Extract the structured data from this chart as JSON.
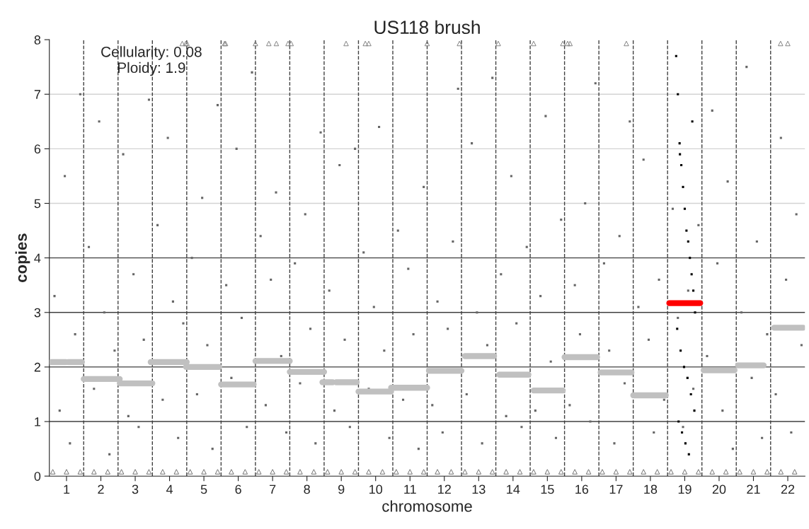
{
  "chart_data": {
    "type": "scatter",
    "title": "US118 brush",
    "xlabel": "chromosome",
    "ylabel": "copies",
    "annotations": [
      "Cellularity: 0.08\nPloidy: 1.9"
    ],
    "xlim": [
      0.5,
      22.5
    ],
    "xticks": [
      1,
      2,
      3,
      4,
      5,
      6,
      7,
      8,
      9,
      10,
      11,
      12,
      13,
      14,
      15,
      16,
      17,
      18,
      19,
      20,
      21,
      22
    ],
    "ylim": [
      0,
      8
    ],
    "yticks": [
      0,
      1,
      2,
      3,
      4,
      5,
      6,
      7,
      8
    ],
    "marker": "square",
    "ref_lines": [
      {
        "axis": "y",
        "value": 1,
        "color": "#404040"
      },
      {
        "axis": "y",
        "value": 2,
        "color": "#404040"
      },
      {
        "axis": "y",
        "value": 3,
        "color": "#404040"
      },
      {
        "axis": "y",
        "value": 4,
        "color": "#404040"
      },
      {
        "axis": "y",
        "value": 5,
        "color": "#d3d3d3"
      },
      {
        "axis": "y",
        "value": 6,
        "color": "#d3d3d3"
      },
      {
        "axis": "y",
        "value": 7,
        "color": "#d3d3d3"
      },
      {
        "axis": "x",
        "value": 1.5,
        "color": "#404040",
        "line_style": "dashed"
      },
      {
        "axis": "x",
        "value": 2.5,
        "color": "#404040",
        "line_style": "dashed"
      },
      {
        "axis": "x",
        "value": 3.5,
        "color": "#404040",
        "line_style": "dashed"
      },
      {
        "axis": "x",
        "value": 4.5,
        "color": "#404040",
        "line_style": "dashed"
      },
      {
        "axis": "x",
        "value": 5.5,
        "color": "#404040",
        "line_style": "dashed"
      },
      {
        "axis": "x",
        "value": 6.5,
        "color": "#404040",
        "line_style": "dashed"
      },
      {
        "axis": "x",
        "value": 7.5,
        "color": "#404040",
        "line_style": "dashed"
      },
      {
        "axis": "x",
        "value": 8.5,
        "color": "#404040",
        "line_style": "dashed"
      },
      {
        "axis": "x",
        "value": 9.5,
        "color": "#404040",
        "line_style": "dashed"
      },
      {
        "axis": "x",
        "value": 10.5,
        "color": "#404040",
        "line_style": "dashed"
      },
      {
        "axis": "x",
        "value": 11.5,
        "color": "#404040",
        "line_style": "dashed"
      },
      {
        "axis": "x",
        "value": 12.5,
        "color": "#404040",
        "line_style": "dashed"
      },
      {
        "axis": "x",
        "value": 13.5,
        "color": "#404040",
        "line_style": "dashed"
      },
      {
        "axis": "x",
        "value": 14.5,
        "color": "#404040",
        "line_style": "dashed"
      },
      {
        "axis": "x",
        "value": 15.5,
        "color": "#404040",
        "line_style": "dashed"
      },
      {
        "axis": "x",
        "value": 16.5,
        "color": "#404040",
        "line_style": "dashed"
      },
      {
        "axis": "x",
        "value": 17.5,
        "color": "#404040",
        "line_style": "dashed"
      },
      {
        "axis": "x",
        "value": 18.5,
        "color": "#404040",
        "line_style": "dashed"
      },
      {
        "axis": "x",
        "value": 19.5,
        "color": "#404040",
        "line_style": "dashed"
      },
      {
        "axis": "x",
        "value": 20.5,
        "color": "#404040",
        "line_style": "dashed"
      },
      {
        "axis": "x",
        "value": 21.5,
        "color": "#404040",
        "line_style": "dashed"
      }
    ],
    "series": [
      {
        "color": "#666666",
        "x": [
          0.65,
          0.8,
          0.95,
          1.1,
          1.25,
          1.4,
          1.65,
          1.8,
          1.95,
          2.1,
          2.25,
          2.4,
          2.65,
          2.8,
          2.95,
          3.1,
          3.25,
          3.4,
          3.65,
          3.8,
          3.95,
          4.1,
          4.25,
          4.4,
          4.65,
          4.8,
          4.95,
          5.1,
          5.25,
          5.4,
          5.65,
          5.8,
          5.95,
          6.1,
          6.25,
          6.4,
          6.65,
          6.8,
          6.95,
          7.1,
          7.25,
          7.4,
          7.65,
          7.8,
          7.95,
          8.1,
          8.25,
          8.4,
          8.65,
          8.8,
          8.95,
          9.1,
          9.25,
          9.4,
          9.65,
          9.8,
          9.95,
          10.1,
          10.25,
          10.4,
          10.65,
          10.8,
          10.95,
          11.1,
          11.25,
          11.4,
          11.65,
          11.8,
          11.95,
          12.1,
          12.25,
          12.4,
          12.65,
          12.8,
          12.95,
          13.1,
          13.25,
          13.4,
          13.65,
          13.8,
          13.95,
          14.1,
          14.25,
          14.4,
          14.65,
          14.8,
          14.95,
          15.1,
          15.25,
          15.4,
          15.65,
          15.8,
          15.95,
          16.1,
          16.25,
          16.4,
          16.65,
          16.8,
          16.95,
          17.1,
          17.25,
          17.4,
          17.65,
          17.8,
          17.95,
          18.1,
          18.25,
          18.4,
          18.65,
          18.8,
          18.95,
          19.1,
          19.25,
          19.4,
          19.65,
          19.8,
          19.95,
          20.1,
          20.25,
          20.4,
          20.65,
          20.8,
          20.95,
          21.1,
          21.25,
          21.4,
          21.65,
          21.8,
          21.95,
          22.1,
          22.25,
          22.4
        ],
        "values": [
          3.3,
          1.2,
          5.5,
          0.6,
          2.6,
          7.0,
          4.2,
          1.6,
          6.5,
          3.0,
          0.4,
          2.3,
          5.9,
          1.1,
          3.7,
          0.9,
          2.5,
          6.9,
          4.6,
          1.4,
          6.2,
          3.2,
          0.7,
          2.8,
          4.0,
          1.5,
          5.1,
          2.4,
          0.5,
          6.8,
          3.5,
          1.8,
          6.0,
          2.9,
          0.9,
          7.4,
          4.4,
          1.3,
          3.6,
          5.2,
          2.2,
          0.8,
          3.9,
          1.7,
          4.8,
          2.7,
          0.6,
          6.3,
          3.4,
          1.2,
          5.7,
          2.5,
          0.9,
          6.0,
          4.1,
          1.6,
          3.1,
          6.4,
          2.3,
          0.7,
          4.5,
          1.4,
          3.8,
          2.6,
          0.5,
          5.3,
          1.3,
          3.2,
          0.8,
          2.7,
          4.3,
          7.1,
          1.5,
          6.1,
          3.0,
          0.6,
          2.4,
          7.3,
          3.7,
          1.1,
          5.5,
          2.8,
          0.9,
          4.2,
          1.2,
          3.3,
          6.6,
          2.1,
          0.7,
          4.7,
          1.3,
          3.5,
          2.6,
          5.0,
          1.0,
          7.2,
          3.9,
          2.3,
          0.6,
          4.4,
          1.7,
          6.5,
          3.1,
          5.8,
          2.5,
          0.8,
          3.6,
          1.4,
          4.9,
          2.9,
          0.9,
          3.4,
          1.6,
          4.6,
          2.2,
          6.7,
          3.9,
          1.2,
          5.4,
          0.5,
          3.0,
          7.5,
          1.8,
          4.3,
          0.7,
          2.6,
          1.5,
          6.2,
          3.6,
          0.8,
          4.8,
          2.4
        ]
      },
      {
        "color": "#000000",
        "x": [
          18.75,
          18.8,
          18.85,
          18.9,
          18.95,
          19.0,
          19.05,
          19.1,
          19.15,
          19.2,
          19.25,
          19.3,
          18.78,
          18.88,
          18.98,
          19.08,
          19.18,
          19.28,
          18.82,
          18.92,
          19.02,
          19.12,
          19.22,
          18.86
        ],
        "values": [
          7.7,
          7.0,
          6.1,
          5.7,
          5.3,
          4.9,
          4.5,
          4.3,
          4.0,
          3.7,
          3.4,
          3.0,
          2.7,
          2.3,
          2.0,
          1.8,
          1.5,
          1.2,
          1.0,
          0.8,
          0.6,
          0.4,
          6.5,
          5.9
        ]
      },
      {
        "color": "#808080",
        "marker": "triangle",
        "x": [
          4.37,
          4.47,
          4.51,
          5.6,
          5.63,
          6.5,
          6.89,
          7.11,
          7.45,
          7.54,
          9.14,
          9.7,
          9.8,
          11.5,
          12.44,
          13.57,
          14.6,
          15.45,
          15.59,
          15.66,
          17.3,
          21.79,
          22.0
        ],
        "values": [
          7.93,
          7.93,
          7.93,
          7.93,
          7.93,
          7.93,
          7.93,
          7.93,
          7.93,
          7.93,
          7.93,
          7.93,
          7.93,
          7.93,
          7.93,
          7.93,
          7.93,
          7.93,
          7.93,
          7.93,
          7.93,
          7.93,
          7.93
        ]
      },
      {
        "color": "#6e6e6e",
        "marker": "triangle",
        "x": [
          0.6,
          1.0,
          1.4,
          1.8,
          2.2,
          2.6,
          3.0,
          3.4,
          3.8,
          4.2,
          4.6,
          5.0,
          5.4,
          5.8,
          6.2,
          6.6,
          7.0,
          7.4,
          7.8,
          8.2,
          8.6,
          9.0,
          9.4,
          9.8,
          10.2,
          10.6,
          11.0,
          11.4,
          11.8,
          12.2,
          12.6,
          13.0,
          13.4,
          13.8,
          14.2,
          14.6,
          15.0,
          15.4,
          15.8,
          16.2,
          16.6,
          17.0,
          17.4,
          17.8,
          18.2,
          18.6,
          19.0,
          19.4,
          19.8,
          20.2,
          20.6,
          21.0,
          21.4,
          21.8,
          22.2
        ],
        "values": [
          0.08,
          0.08,
          0.08,
          0.08,
          0.08,
          0.08,
          0.08,
          0.08,
          0.08,
          0.08,
          0.08,
          0.08,
          0.08,
          0.08,
          0.08,
          0.08,
          0.08,
          0.08,
          0.08,
          0.08,
          0.08,
          0.08,
          0.08,
          0.08,
          0.08,
          0.08,
          0.08,
          0.08,
          0.08,
          0.08,
          0.08,
          0.08,
          0.08,
          0.08,
          0.08,
          0.08,
          0.08,
          0.08,
          0.08,
          0.08,
          0.08,
          0.08,
          0.08,
          0.08,
          0.08,
          0.08,
          0.08,
          0.08,
          0.08,
          0.08,
          0.08,
          0.08,
          0.08,
          0.08,
          0.08
        ]
      },
      {
        "type": "line",
        "color": "#c0c0c0",
        "marker": "none",
        "x": [
          0.55,
          0.98,
          null,
          1.05,
          1.45,
          null,
          1.5,
          2.55,
          null,
          2.55,
          3.5,
          null,
          3.45,
          4.5,
          null,
          4.48,
          5.45,
          null,
          5.5,
          6.45,
          null,
          6.5,
          7.5,
          null,
          7.5,
          8.5,
          null,
          8.45,
          8.75,
          null,
          8.85,
          9.45,
          null,
          9.5,
          10.45,
          null,
          10.45,
          11.5,
          null,
          11.55,
          12.5,
          null,
          12.6,
          13.45,
          null,
          13.6,
          14.45,
          null,
          14.6,
          15.45,
          null,
          15.5,
          16.45,
          null,
          16.55,
          17.45,
          null,
          17.5,
          18.45,
          null,
          19.55,
          20.45,
          null,
          20.55,
          21.3,
          null,
          21.6,
          22.45
        ],
        "values": [
          2.09,
          2.09,
          null,
          2.09,
          2.09,
          null,
          1.78,
          1.78,
          null,
          1.7,
          1.7,
          null,
          2.09,
          2.09,
          null,
          2.0,
          2.0,
          null,
          1.68,
          1.68,
          null,
          2.11,
          2.11,
          null,
          1.91,
          1.91,
          null,
          1.72,
          1.72,
          null,
          1.72,
          1.72,
          null,
          1.55,
          1.55,
          null,
          1.62,
          1.62,
          null,
          1.93,
          1.93,
          null,
          2.2,
          2.2,
          null,
          1.86,
          1.86,
          null,
          1.57,
          1.57,
          null,
          2.18,
          2.18,
          null,
          1.9,
          1.9,
          null,
          1.48,
          1.48,
          null,
          1.94,
          1.94,
          null,
          2.03,
          2.03,
          null,
          2.72,
          2.72
        ]
      },
      {
        "type": "line",
        "color": "#ff0000",
        "marker": "none",
        "x": [
          18.55,
          19.45
        ],
        "values": [
          3.17,
          3.17
        ]
      }
    ]
  }
}
